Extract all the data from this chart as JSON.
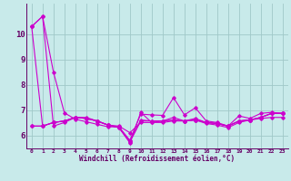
{
  "xlabel": "Windchill (Refroidissement éolien,°C)",
  "x": [
    0,
    1,
    2,
    3,
    4,
    5,
    6,
    7,
    8,
    9,
    10,
    11,
    12,
    13,
    14,
    15,
    16,
    17,
    18,
    19,
    20,
    21,
    22,
    23
  ],
  "series": [
    [
      10.3,
      10.7,
      8.5,
      6.9,
      6.65,
      6.55,
      6.45,
      6.35,
      6.35,
      5.82,
      6.85,
      6.82,
      6.8,
      7.5,
      6.82,
      7.1,
      6.58,
      6.52,
      6.38,
      6.78,
      6.68,
      6.88,
      6.92,
      6.88
    ],
    [
      10.3,
      10.7,
      6.38,
      6.52,
      6.72,
      6.72,
      6.58,
      6.42,
      6.38,
      6.12,
      6.52,
      6.52,
      6.58,
      6.72,
      6.58,
      6.68,
      6.52,
      6.48,
      6.38,
      6.58,
      6.62,
      6.68,
      6.72,
      6.72
    ],
    [
      10.3,
      6.38,
      6.52,
      6.58,
      6.72,
      6.68,
      6.58,
      6.42,
      6.32,
      5.72,
      6.92,
      6.52,
      6.52,
      6.58,
      6.58,
      6.62,
      6.48,
      6.42,
      6.32,
      6.52,
      6.62,
      6.72,
      6.88,
      6.88
    ],
    [
      6.38,
      6.38,
      6.52,
      6.58,
      6.72,
      6.68,
      6.58,
      6.42,
      6.32,
      5.75,
      6.58,
      6.58,
      6.58,
      6.62,
      6.58,
      6.62,
      6.52,
      6.48,
      6.38,
      6.58,
      6.62,
      6.72,
      6.88,
      6.88
    ],
    [
      6.38,
      6.38,
      6.52,
      6.58,
      6.72,
      6.68,
      6.58,
      6.42,
      6.32,
      5.78,
      6.62,
      6.58,
      6.58,
      6.62,
      6.58,
      6.62,
      6.52,
      6.48,
      6.38,
      6.58,
      6.62,
      6.72,
      6.88,
      6.88
    ]
  ],
  "line_color": "#cc00cc",
  "bg_color": "#c8eaea",
  "grid_color": "#a0c8c8",
  "tick_color": "#660066",
  "ylim": [
    5.5,
    11.2
  ],
  "yticks": [
    6,
    7,
    8,
    9,
    10
  ],
  "marker": "D",
  "markersize": 1.8,
  "linewidth": 0.8
}
